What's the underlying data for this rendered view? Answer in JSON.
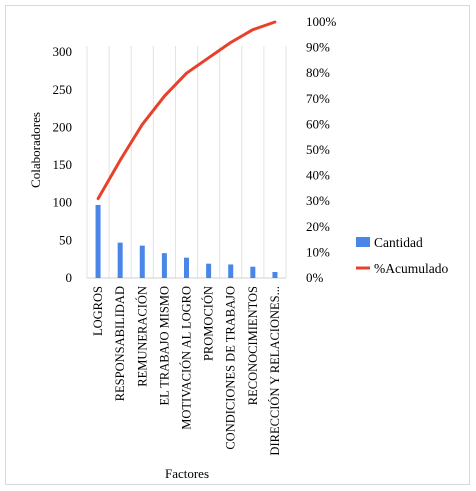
{
  "chart_data": {
    "type": "bar",
    "categories": [
      "LOGROS",
      "RESPONSABILIDAD",
      "REMUNERACIÓN",
      "EL TRABAJO MISMO",
      "MOTIVACIÓN AL LOGRO",
      "PROMOCIÓN",
      "CONDICIONES DE TRABAJO",
      "RECONOCIMIENTOS",
      "DIRECCIÓN Y RELACIONES..."
    ],
    "series": [
      {
        "name": "Cantidad",
        "type": "bar",
        "axis": "left",
        "color": "#4a86e8",
        "values": [
          97,
          47,
          43,
          33,
          27,
          19,
          18,
          15,
          8
        ]
      },
      {
        "name": "%Acumulado",
        "type": "line",
        "axis": "right",
        "color": "#e8412a",
        "values": [
          0.31,
          0.46,
          0.6,
          0.71,
          0.8,
          0.86,
          0.92,
          0.97,
          1.0
        ]
      }
    ],
    "xlabel": "Factores",
    "ylabel": "Colaboradores",
    "y_ticks": [
      "0",
      "50",
      "100",
      "150",
      "200",
      "250",
      "300"
    ],
    "y2_ticks": [
      "0%",
      "10%",
      "20%",
      "30%",
      "40%",
      "50%",
      "60%",
      "70%",
      "80%",
      "90%",
      "100%"
    ],
    "ylim": [
      0,
      340
    ],
    "y2lim": [
      0,
      1
    ],
    "grid": true,
    "legend": "right"
  }
}
